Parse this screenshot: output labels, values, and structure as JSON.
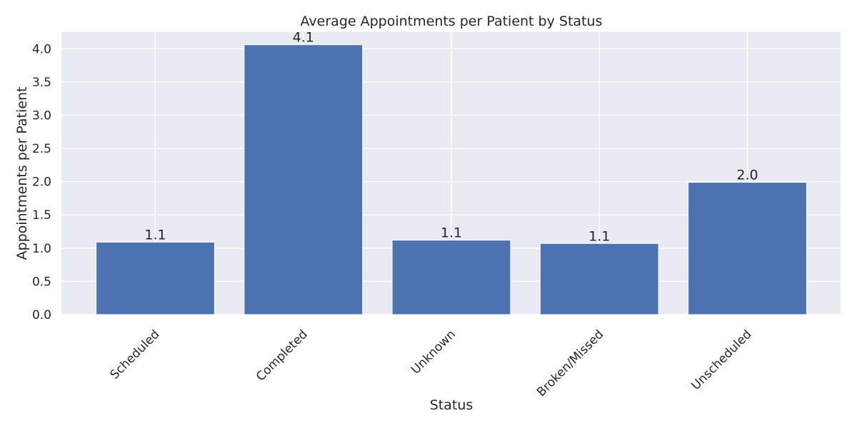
{
  "chart_data": {
    "type": "bar",
    "title": "Average Appointments per Patient by Status",
    "xlabel": "Status",
    "ylabel": "Appointments per Patient",
    "categories": [
      "Scheduled",
      "Completed",
      "Unknown",
      "Broken/Missed",
      "Unscheduled"
    ],
    "values": [
      1.09,
      4.06,
      1.12,
      1.07,
      1.99
    ],
    "value_labels": [
      "1.1",
      "4.1",
      "1.1",
      "1.1",
      "2.0"
    ],
    "ylim": [
      0,
      4.25
    ],
    "yticks": [
      0.0,
      0.5,
      1.0,
      1.5,
      2.0,
      2.5,
      3.0,
      3.5,
      4.0
    ],
    "ytick_labels": [
      "0.0",
      "0.5",
      "1.0",
      "1.5",
      "2.0",
      "2.5",
      "3.0",
      "3.5",
      "4.0"
    ],
    "grid": true,
    "colors": {
      "bar": "#4c72b0",
      "plot_background": "#eaeaf2",
      "grid": "#ffffff",
      "text": "#262626"
    }
  }
}
